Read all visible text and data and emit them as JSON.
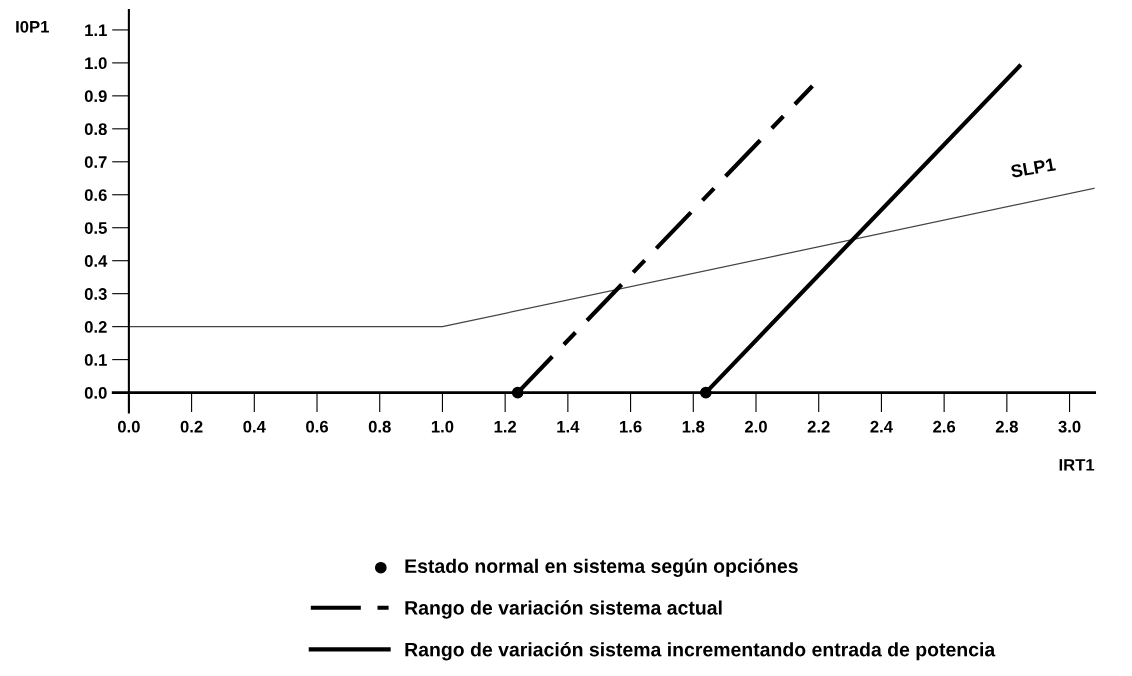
{
  "chart_data": {
    "type": "line",
    "xlabel": "IRT1",
    "ylabel": "I0P1",
    "xlim": [
      -0.05,
      3.08
    ],
    "ylim": [
      -0.06,
      1.16
    ],
    "xticks": [
      {
        "value": 0,
        "label": "0.0"
      },
      {
        "value": 0.2,
        "label": "0.2"
      },
      {
        "value": 0.4,
        "label": "0.4"
      },
      {
        "value": 0.6,
        "label": "0.6"
      },
      {
        "value": 0.8,
        "label": "0.8"
      },
      {
        "value": 1.0,
        "label": "1.0"
      },
      {
        "value": 1.2,
        "label": "1.2"
      },
      {
        "value": 1.4,
        "label": "1.4"
      },
      {
        "value": 1.6,
        "label": "1.6"
      },
      {
        "value": 1.8,
        "label": "1.8"
      },
      {
        "value": 2.0,
        "label": "2.0"
      },
      {
        "value": 2.2,
        "label": "2.2"
      },
      {
        "value": 2.4,
        "label": "2.4"
      },
      {
        "value": 2.6,
        "label": "2.6"
      },
      {
        "value": 2.8,
        "label": "2.8"
      },
      {
        "value": 3.0,
        "label": "3.0"
      }
    ],
    "yticks": [
      {
        "value": 0,
        "label": "0.0"
      },
      {
        "value": 0.1,
        "label": "0.1"
      },
      {
        "value": 0.2,
        "label": "0.2"
      },
      {
        "value": 0.3,
        "label": "0.3"
      },
      {
        "value": 0.4,
        "label": "0.4"
      },
      {
        "value": 0.5,
        "label": "0.5"
      },
      {
        "value": 0.6,
        "label": "0.6"
      },
      {
        "value": 0.7,
        "label": "0.7"
      },
      {
        "value": 0.8,
        "label": "0.8"
      },
      {
        "value": 0.9,
        "label": "0.9"
      },
      {
        "value": 1.0,
        "label": "1.0"
      },
      {
        "value": 1.1,
        "label": "1.1"
      }
    ],
    "grid": false,
    "legend": "bottom",
    "annotations": [
      "SLP1"
    ],
    "series": [
      {
        "color": "#444444",
        "x": [
          0,
          1.0,
          3.08
        ],
        "values": [
          0.2,
          0.2,
          0.62
        ],
        "line_style": "solid",
        "marker": "none"
      },
      {
        "name": "Estado normal en sistema según opciónes",
        "type": "scatter",
        "color": "#000000",
        "x": [
          1.24,
          1.84
        ],
        "values": [
          0,
          0
        ],
        "marker": "circle"
      },
      {
        "name": "Rango de variación sistema actual",
        "color": "#000000",
        "x": [
          1.24,
          2.18
        ],
        "values": [
          0,
          0.93
        ],
        "line_style": "dashed",
        "marker": "none"
      },
      {
        "name": "Rango de variación sistema incrementando entrada de potencia",
        "color": "#000000",
        "x": [
          1.84,
          2.84
        ],
        "values": [
          0,
          0.99
        ],
        "line_style": "solid",
        "marker": "none"
      }
    ]
  }
}
